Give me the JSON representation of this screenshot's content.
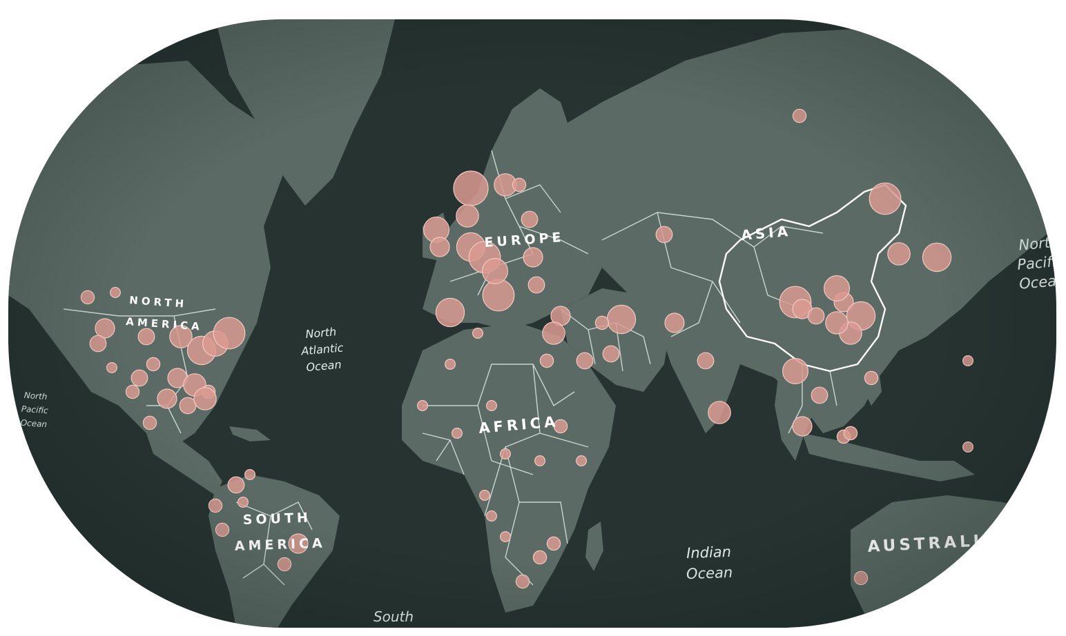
{
  "map": {
    "theme": {
      "ocean_color": "#263330",
      "land_color": "#5b6a65",
      "border_color": "#dfe8e4",
      "dot_color": "#d99a90"
    },
    "continent_labels": {
      "north_america": [
        "NORTH",
        "AMERICA"
      ],
      "south_america": [
        "SOUTH",
        "AMERICA"
      ],
      "europe": "EUROPE",
      "africa": "AFRICA",
      "asia": "ASIA",
      "australia": "AUSTRALIA"
    },
    "ocean_labels": {
      "north_pacific_left": [
        "North",
        "Pacific",
        "Ocean"
      ],
      "north_atlantic": [
        "North",
        "Atlantic",
        "Ocean"
      ],
      "indian": [
        "Indian",
        "Ocean"
      ],
      "south": [
        "South"
      ],
      "north_pacific_right": [
        "North",
        "Pacific",
        "Ocean"
      ]
    },
    "case_markers": {
      "description_scale": "relative",
      "regions": {
        "north_america": [
          3,
          2,
          5,
          4,
          4,
          6,
          8,
          3,
          5,
          7,
          9,
          4,
          6,
          3,
          2,
          5,
          4,
          3,
          6,
          3
        ],
        "south_america": [
          3,
          4,
          2,
          3,
          5,
          2,
          3
        ],
        "europe": [
          8,
          9,
          7,
          10,
          6,
          9,
          8,
          5,
          4,
          6,
          5,
          7,
          3,
          4
        ],
        "africa": [
          2,
          2,
          3,
          2,
          2,
          3,
          2,
          2,
          2,
          3,
          2,
          2,
          2,
          2,
          3,
          3
        ],
        "middle_east": [
          5,
          8,
          4,
          3,
          5,
          4,
          6
        ],
        "asia": [
          3,
          4,
          9,
          6,
          5,
          7,
          8,
          6,
          9,
          5,
          6,
          4,
          3,
          7,
          4,
          5,
          3,
          4,
          6,
          8
        ],
        "oceania": [
          3,
          2,
          2,
          3
        ]
      }
    }
  }
}
